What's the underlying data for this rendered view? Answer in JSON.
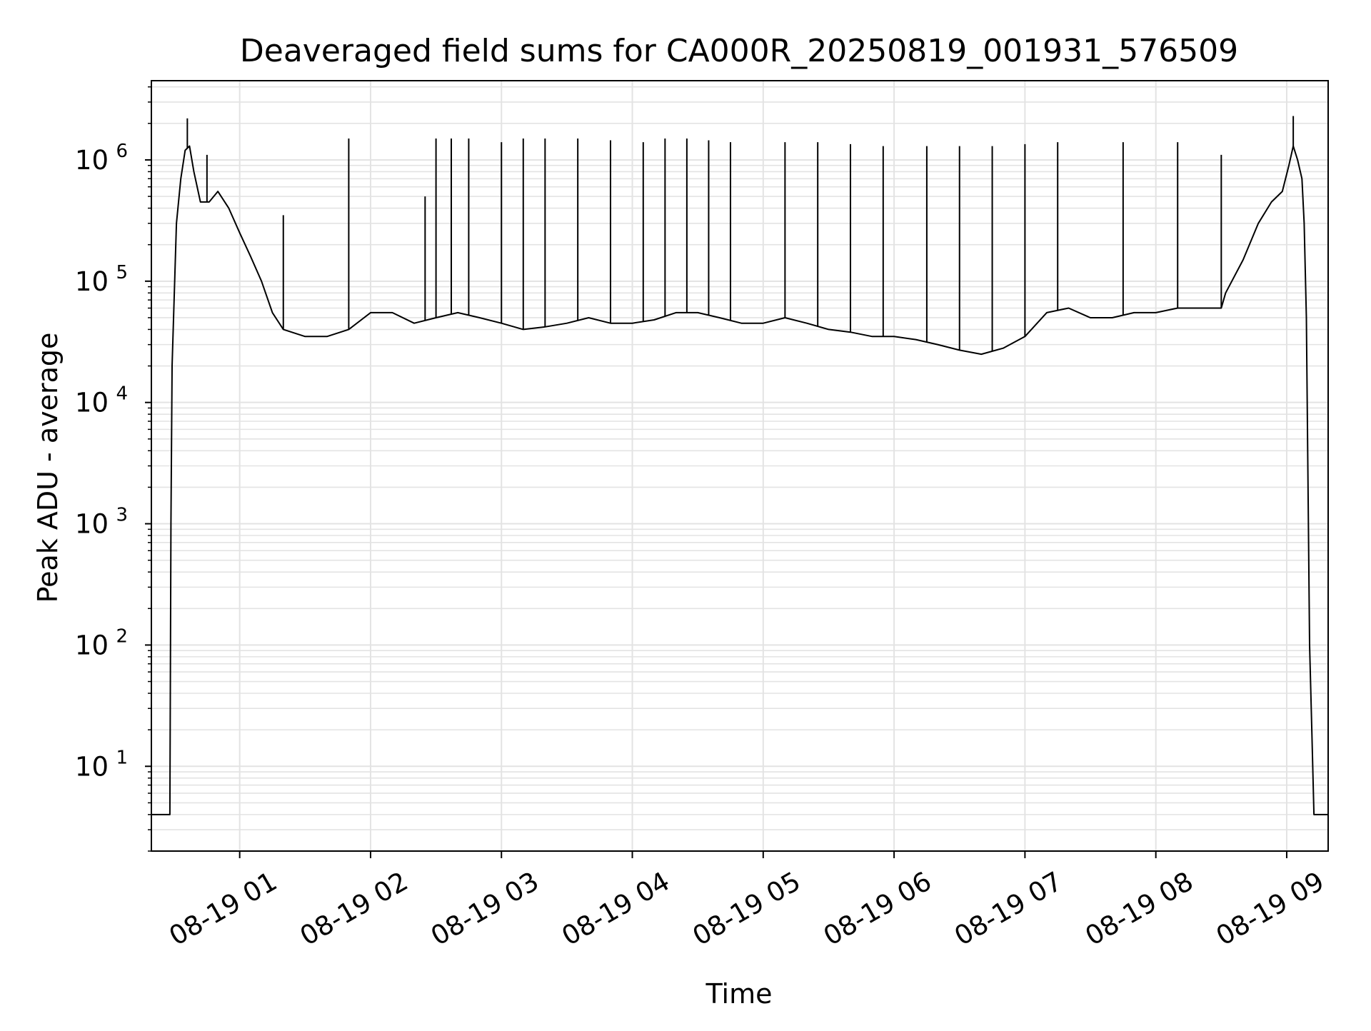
{
  "chart_data": {
    "type": "line",
    "title": "Deaveraged field sums for CA000R_20250819_001931_576509",
    "xlabel": "Time",
    "ylabel": "Peak ADU - average",
    "yscale": "log",
    "xlim": [
      "2025-08-19 00:19:31",
      "2025-08-19 09:19:00"
    ],
    "ylim": [
      2,
      4500000
    ],
    "grid": true,
    "x_ticks": [
      {
        "t": "2025-08-19 01:00",
        "label": "08-19 01"
      },
      {
        "t": "2025-08-19 02:00",
        "label": "08-19 02"
      },
      {
        "t": "2025-08-19 03:00",
        "label": "08-19 03"
      },
      {
        "t": "2025-08-19 04:00",
        "label": "08-19 04"
      },
      {
        "t": "2025-08-19 05:00",
        "label": "08-19 05"
      },
      {
        "t": "2025-08-19 06:00",
        "label": "08-19 06"
      },
      {
        "t": "2025-08-19 07:00",
        "label": "08-19 07"
      },
      {
        "t": "2025-08-19 08:00",
        "label": "08-19 08"
      },
      {
        "t": "2025-08-19 09:00",
        "label": "08-19 09"
      }
    ],
    "y_ticks": [
      {
        "value": 10,
        "base": "10",
        "exp": "1"
      },
      {
        "value": 100,
        "base": "10",
        "exp": "2"
      },
      {
        "value": 1000,
        "base": "10",
        "exp": "3"
      },
      {
        "value": 10000,
        "base": "10",
        "exp": "4"
      },
      {
        "value": 100000,
        "base": "10",
        "exp": "5"
      },
      {
        "value": 1000000,
        "base": "10",
        "exp": "6"
      }
    ],
    "line_color": "#000000",
    "grid_color": "#e3e3e3",
    "series": [
      {
        "points": [
          [
            "2025-08-19 00:19:31",
            4
          ],
          [
            "2025-08-19 00:28:00",
            4
          ],
          [
            "2025-08-19 00:28:30",
            1000
          ],
          [
            "2025-08-19 00:29:00",
            20000
          ],
          [
            "2025-08-19 00:31:00",
            300000
          ],
          [
            "2025-08-19 00:33:00",
            700000
          ],
          [
            "2025-08-19 00:35:00",
            1200000
          ],
          [
            "2025-08-19 00:37:00",
            1300000
          ],
          [
            "2025-08-19 00:39:00",
            800000
          ],
          [
            "2025-08-19 00:42:00",
            450000
          ],
          [
            "2025-08-19 00:46:00",
            450000
          ],
          [
            "2025-08-19 00:50:00",
            550000
          ],
          [
            "2025-08-19 00:55:00",
            400000
          ],
          [
            "2025-08-19 01:00:00",
            250000
          ],
          [
            "2025-08-19 01:05:00",
            160000
          ],
          [
            "2025-08-19 01:10:00",
            100000
          ],
          [
            "2025-08-19 01:15:00",
            55000
          ],
          [
            "2025-08-19 01:20:00",
            40000
          ],
          [
            "2025-08-19 01:30:00",
            35000
          ],
          [
            "2025-08-19 01:40:00",
            35000
          ],
          [
            "2025-08-19 01:50:00",
            40000
          ],
          [
            "2025-08-19 02:00:00",
            55000
          ],
          [
            "2025-08-19 02:10:00",
            55000
          ],
          [
            "2025-08-19 02:20:00",
            45000
          ],
          [
            "2025-08-19 02:30:00",
            50000
          ],
          [
            "2025-08-19 02:40:00",
            55000
          ],
          [
            "2025-08-19 02:50:00",
            50000
          ],
          [
            "2025-08-19 03:00:00",
            45000
          ],
          [
            "2025-08-19 03:10:00",
            40000
          ],
          [
            "2025-08-19 03:20:00",
            42000
          ],
          [
            "2025-08-19 03:30:00",
            45000
          ],
          [
            "2025-08-19 03:40:00",
            50000
          ],
          [
            "2025-08-19 03:50:00",
            45000
          ],
          [
            "2025-08-19 04:00:00",
            45000
          ],
          [
            "2025-08-19 04:10:00",
            48000
          ],
          [
            "2025-08-19 04:20:00",
            55000
          ],
          [
            "2025-08-19 04:30:00",
            55000
          ],
          [
            "2025-08-19 04:40:00",
            50000
          ],
          [
            "2025-08-19 04:50:00",
            45000
          ],
          [
            "2025-08-19 05:00:00",
            45000
          ],
          [
            "2025-08-19 05:10:00",
            50000
          ],
          [
            "2025-08-19 05:20:00",
            45000
          ],
          [
            "2025-08-19 05:30:00",
            40000
          ],
          [
            "2025-08-19 05:40:00",
            38000
          ],
          [
            "2025-08-19 05:50:00",
            35000
          ],
          [
            "2025-08-19 06:00:00",
            35000
          ],
          [
            "2025-08-19 06:10:00",
            33000
          ],
          [
            "2025-08-19 06:20:00",
            30000
          ],
          [
            "2025-08-19 06:30:00",
            27000
          ],
          [
            "2025-08-19 06:40:00",
            25000
          ],
          [
            "2025-08-19 06:50:00",
            28000
          ],
          [
            "2025-08-19 07:00:00",
            35000
          ],
          [
            "2025-08-19 07:10:00",
            55000
          ],
          [
            "2025-08-19 07:20:00",
            60000
          ],
          [
            "2025-08-19 07:30:00",
            50000
          ],
          [
            "2025-08-19 07:40:00",
            50000
          ],
          [
            "2025-08-19 07:50:00",
            55000
          ],
          [
            "2025-08-19 08:00:00",
            55000
          ],
          [
            "2025-08-19 08:10:00",
            60000
          ],
          [
            "2025-08-19 08:20:00",
            60000
          ],
          [
            "2025-08-19 08:30:00",
            60000
          ],
          [
            "2025-08-19 08:32:00",
            80000
          ],
          [
            "2025-08-19 08:40:00",
            150000
          ],
          [
            "2025-08-19 08:47:00",
            300000
          ],
          [
            "2025-08-19 08:53:00",
            450000
          ],
          [
            "2025-08-19 08:58:00",
            550000
          ],
          [
            "2025-08-19 09:01:00",
            900000
          ],
          [
            "2025-08-19 09:03:00",
            1300000
          ],
          [
            "2025-08-19 09:05:00",
            1000000
          ],
          [
            "2025-08-19 09:07:00",
            700000
          ],
          [
            "2025-08-19 09:08:00",
            300000
          ],
          [
            "2025-08-19 09:09:00",
            50000
          ],
          [
            "2025-08-19 09:10:30",
            100
          ],
          [
            "2025-08-19 09:11:30",
            20
          ],
          [
            "2025-08-19 09:12:30",
            4
          ],
          [
            "2025-08-19 09:19:00",
            4
          ]
        ]
      }
    ],
    "spikes": [
      {
        "t": "2025-08-19 00:36:00",
        "y": 2200000
      },
      {
        "t": "2025-08-19 00:45:00",
        "y": 1100000
      },
      {
        "t": "2025-08-19 01:20:00",
        "y": 350000
      },
      {
        "t": "2025-08-19 01:50:00",
        "y": 1500000
      },
      {
        "t": "2025-08-19 02:25:00",
        "y": 500000
      },
      {
        "t": "2025-08-19 02:30:00",
        "y": 1500000
      },
      {
        "t": "2025-08-19 02:37:00",
        "y": 1500000
      },
      {
        "t": "2025-08-19 02:45:00",
        "y": 1500000
      },
      {
        "t": "2025-08-19 03:00:00",
        "y": 1400000
      },
      {
        "t": "2025-08-19 03:10:00",
        "y": 1500000
      },
      {
        "t": "2025-08-19 03:20:00",
        "y": 1500000
      },
      {
        "t": "2025-08-19 03:35:00",
        "y": 1500000
      },
      {
        "t": "2025-08-19 03:50:00",
        "y": 1450000
      },
      {
        "t": "2025-08-19 04:05:00",
        "y": 1400000
      },
      {
        "t": "2025-08-19 04:15:00",
        "y": 1500000
      },
      {
        "t": "2025-08-19 04:25:00",
        "y": 1500000
      },
      {
        "t": "2025-08-19 04:35:00",
        "y": 1450000
      },
      {
        "t": "2025-08-19 04:45:00",
        "y": 1400000
      },
      {
        "t": "2025-08-19 05:10:00",
        "y": 1400000
      },
      {
        "t": "2025-08-19 05:25:00",
        "y": 1400000
      },
      {
        "t": "2025-08-19 05:40:00",
        "y": 1350000
      },
      {
        "t": "2025-08-19 05:55:00",
        "y": 1300000
      },
      {
        "t": "2025-08-19 06:15:00",
        "y": 1300000
      },
      {
        "t": "2025-08-19 06:30:00",
        "y": 1300000
      },
      {
        "t": "2025-08-19 06:45:00",
        "y": 1300000
      },
      {
        "t": "2025-08-19 07:00:00",
        "y": 1350000
      },
      {
        "t": "2025-08-19 07:15:00",
        "y": 1400000
      },
      {
        "t": "2025-08-19 07:45:00",
        "y": 1400000
      },
      {
        "t": "2025-08-19 08:10:00",
        "y": 1400000
      },
      {
        "t": "2025-08-19 08:30:00",
        "y": 1100000
      },
      {
        "t": "2025-08-19 09:03:00",
        "y": 2300000
      }
    ]
  }
}
